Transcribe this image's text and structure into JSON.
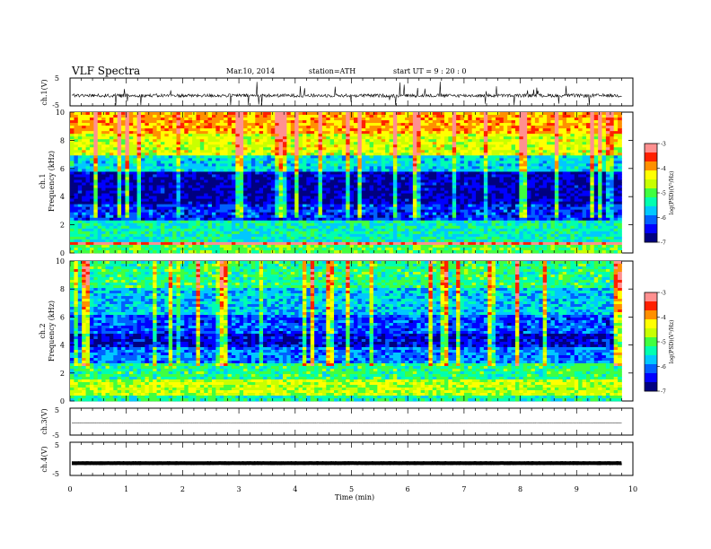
{
  "header": {
    "title": "VLF  Spectra",
    "date": "Mar.10, 2014",
    "station": "station=ATH",
    "start": "start  UT  =   9  : 20 : 0"
  },
  "chart_data": [
    {
      "type": "line",
      "name": "ch1-waveform",
      "ylabel": "ch.1(V)",
      "ylim": [
        -5,
        5
      ],
      "yticks": [
        "5",
        "-5"
      ],
      "xlim": [
        0,
        10
      ],
      "baseline": -1.3
    },
    {
      "type": "heatmap",
      "name": "ch1-spectrogram",
      "ylabel_top": "ch.1",
      "ylabel": "Frequency  (kHz)",
      "ylim": [
        0,
        10
      ],
      "yticks": [
        "0",
        "2",
        "4",
        "6",
        "8",
        "10"
      ],
      "xlim": [
        0,
        9.8
      ],
      "colorbar": {
        "label": "log(PSD)(V²/Hz)",
        "range": [
          -7,
          -3
        ],
        "ticks": [
          "-3",
          "-4",
          "-5",
          "-6",
          "-7"
        ]
      },
      "bands_log_psd": [
        {
          "f": [
            0,
            0.5
          ],
          "v": -5.0
        },
        {
          "f": [
            0.5,
            0.8
          ],
          "v": -3.2
        },
        {
          "f": [
            0.8,
            2.3
          ],
          "v": -5.4
        },
        {
          "f": [
            2.3,
            3.5
          ],
          "v": -6.3
        },
        {
          "f": [
            3.5,
            5.8
          ],
          "v": -6.7
        },
        {
          "f": [
            5.8,
            7.0
          ],
          "v": -5.6
        },
        {
          "f": [
            7.0,
            8.5
          ],
          "v": -4.5
        },
        {
          "f": [
            8.5,
            10.0
          ],
          "v": -4.0
        }
      ]
    },
    {
      "type": "heatmap",
      "name": "ch2-spectrogram",
      "ylabel_top": "ch.2",
      "ylabel": "Frequency  (kHz)",
      "ylim": [
        0,
        10
      ],
      "yticks": [
        "0",
        "2",
        "4",
        "6",
        "8",
        "10"
      ],
      "xlim": [
        0,
        9.8
      ],
      "colorbar": {
        "label": "log(PSD)(V²/Hz)",
        "range": [
          -7,
          -3
        ],
        "ticks": [
          "-3",
          "-4",
          "-5",
          "-6",
          "-7"
        ]
      },
      "bands_log_psd": [
        {
          "f": [
            0,
            0.4
          ],
          "v": -5.3
        },
        {
          "f": [
            0.4,
            1.6
          ],
          "v": -4.6
        },
        {
          "f": [
            1.6,
            2.6
          ],
          "v": -5.2
        },
        {
          "f": [
            2.6,
            3.8
          ],
          "v": -6.0
        },
        {
          "f": [
            3.8,
            4.8
          ],
          "v": -6.6
        },
        {
          "f": [
            4.8,
            6.2
          ],
          "v": -6.2
        },
        {
          "f": [
            6.2,
            8.0
          ],
          "v": -5.7
        },
        {
          "f": [
            8.0,
            10.0
          ],
          "v": -5.2
        }
      ]
    },
    {
      "type": "line",
      "name": "ch3-waveform",
      "ylabel": "ch.3(V)",
      "ylim": [
        -5,
        5
      ],
      "yticks": [
        "5",
        "-5"
      ],
      "xlim": [
        0,
        10
      ],
      "baseline": -0.5
    },
    {
      "type": "line",
      "name": "ch4-waveform",
      "ylabel": "ch.4(V)",
      "ylim": [
        -5,
        5
      ],
      "yticks": [
        "5",
        "-5"
      ],
      "xlim": [
        0,
        10
      ],
      "baseline": -1.3
    }
  ],
  "xaxis": {
    "label": "Time  (min)",
    "ticks": [
      "0",
      "1",
      "2",
      "3",
      "4",
      "5",
      "6",
      "7",
      "8",
      "9",
      "10"
    ]
  },
  "colors": {
    "colormap": [
      "#000080",
      "#0000ff",
      "#0060ff",
      "#00c8ff",
      "#00ffb0",
      "#40ff40",
      "#c8ff00",
      "#ffff00",
      "#ff9000",
      "#ff2000",
      "#ff9090",
      "#ffffff"
    ]
  }
}
